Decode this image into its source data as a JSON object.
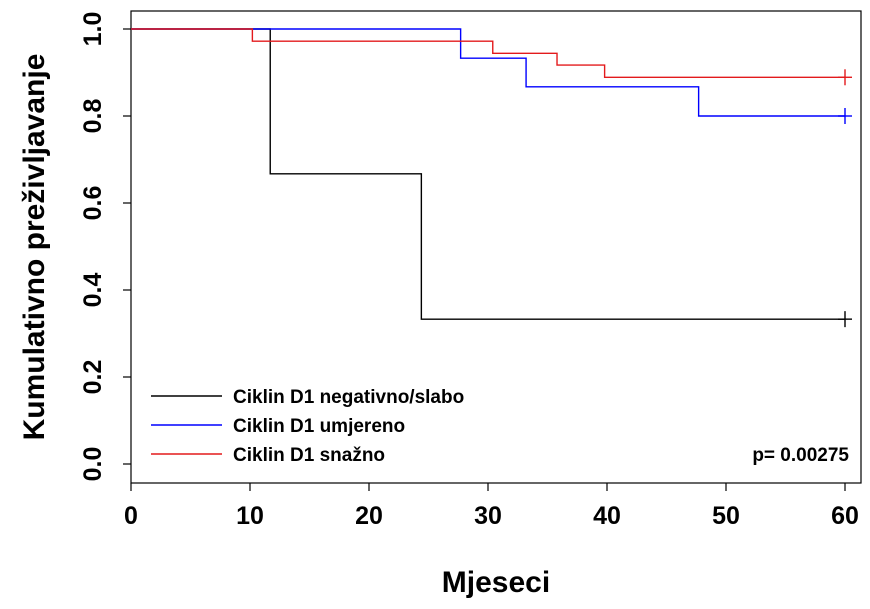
{
  "chart_data": {
    "type": "line",
    "subtype": "kaplan-meier",
    "title": "",
    "xlabel": "Mjeseci",
    "ylabel": "Kumulativno preživljavanje",
    "xlim": [
      0,
      60
    ],
    "ylim": [
      0,
      1
    ],
    "x_ticks": [
      {
        "value": 0,
        "label": "0"
      },
      {
        "value": 10,
        "label": "10"
      },
      {
        "value": 20,
        "label": "20"
      },
      {
        "value": 30,
        "label": "30"
      },
      {
        "value": 40,
        "label": "40"
      },
      {
        "value": 50,
        "label": "50"
      },
      {
        "value": 60,
        "label": "60"
      }
    ],
    "y_ticks": [
      {
        "value": 0,
        "label": "0.0"
      },
      {
        "value": 0.2,
        "label": "0.2"
      },
      {
        "value": 0.4,
        "label": "0.4"
      },
      {
        "value": 0.6,
        "label": "0.6"
      },
      {
        "value": 0.8,
        "label": "0.8"
      },
      {
        "value": 1,
        "label": "1.0"
      }
    ],
    "grid": false,
    "legend_position": "bottom-left",
    "annotation": "p= 0.00275",
    "series": [
      {
        "name": "Ciklin D1 negativno/slabo",
        "color": "#000000",
        "steps": [
          [
            0,
            1.0
          ],
          [
            11.7,
            0.667
          ],
          [
            24.4,
            0.333
          ],
          [
            60,
            0.333
          ]
        ],
        "censored": [
          [
            60,
            0.333
          ]
        ]
      },
      {
        "name": "Ciklin D1 umjereno",
        "color": "#0000ff",
        "steps": [
          [
            0,
            1.0
          ],
          [
            27.7,
            0.933
          ],
          [
            33.2,
            0.867
          ],
          [
            47.7,
            0.8
          ],
          [
            60,
            0.8
          ]
        ],
        "censored": [
          [
            60,
            0.8
          ]
        ]
      },
      {
        "name": "Ciklin D1 snažno",
        "color": "#e31a1c",
        "steps": [
          [
            0,
            1.0
          ],
          [
            10.2,
            0.972
          ],
          [
            30.4,
            0.944
          ],
          [
            35.8,
            0.917
          ],
          [
            39.8,
            0.889
          ],
          [
            60,
            0.889
          ]
        ],
        "censored": [
          [
            60,
            0.889
          ]
        ]
      }
    ]
  }
}
